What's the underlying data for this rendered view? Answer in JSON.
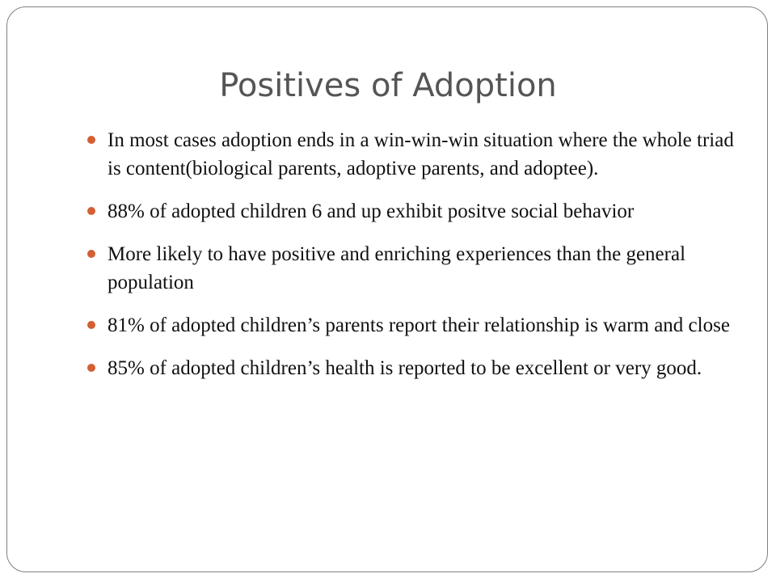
{
  "slide": {
    "title": "Positives of Adoption",
    "bullets": [
      "In most cases adoption ends in a win-win-win situation where the whole triad is content(biological parents, adoptive parents, and adoptee).",
      "88% of adopted children 6 and up exhibit positve social behavior",
      "More likely to have positive and enriching experiences than the general population",
      "81% of adopted children’s parents report their relationship is warm and close",
      "85% of adopted children’s health is reported to be excellent or very good."
    ]
  },
  "colors": {
    "bullet_accent": "#d35f32",
    "title_text": "#555555",
    "body_text": "#111111",
    "frame_border": "#7f7f7f"
  }
}
